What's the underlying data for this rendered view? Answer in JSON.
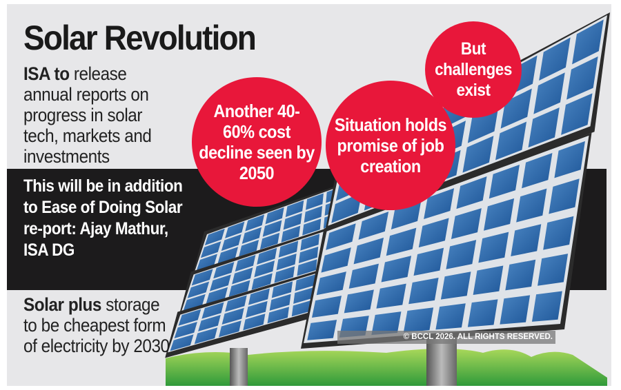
{
  "title": "Solar Revolution",
  "points": [
    {
      "bold": "ISA to",
      "text": " release annual reports on progress in solar tech, markets and investments"
    },
    {
      "bold": "This will be in addition to Ease of Doing Solar re-port: Ajay Mathur, ISA DG",
      "text": ""
    },
    {
      "bold": "Solar plus",
      "text": " storage to be cheapest form of electricity by 2030"
    }
  ],
  "bubbles": [
    "Another 40-60% cost decline seen by 2050",
    "Situation holds promise of job creation",
    "But challenges exist"
  ],
  "watermark": "© BCCL 2026. ALL RIGHTS RESERVED.",
  "colors": {
    "bubble": "#e8173a",
    "panel_cell": "#2a64a8",
    "band": "#1c1b1c",
    "grass": "#5cb83a"
  }
}
